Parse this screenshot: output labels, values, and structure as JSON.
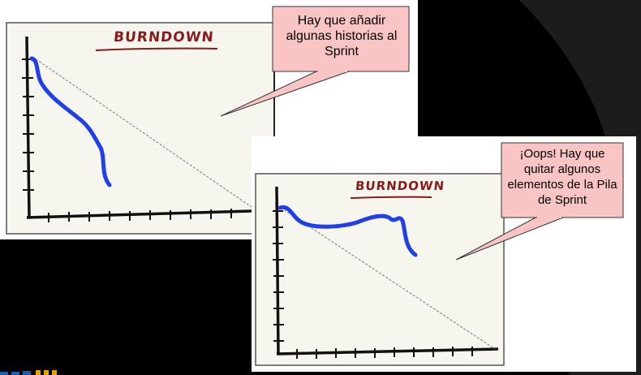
{
  "panel1": {
    "title": "BURNDOWN",
    "callout": "Hay que añadir algunas historias al Sprint"
  },
  "panel2": {
    "title": "BURNDOWN",
    "callout": "¡Oops! Hay que quitar algunos elementos de la Pila de Sprint"
  },
  "colors": {
    "background": "#000000",
    "board_bg": "#f6f6ef",
    "board_border": "#555555",
    "curve": "#1f3fe8",
    "title": "#8b1a1a",
    "callout_fill": "#f8c4c4",
    "callout_border": "#333333"
  }
}
